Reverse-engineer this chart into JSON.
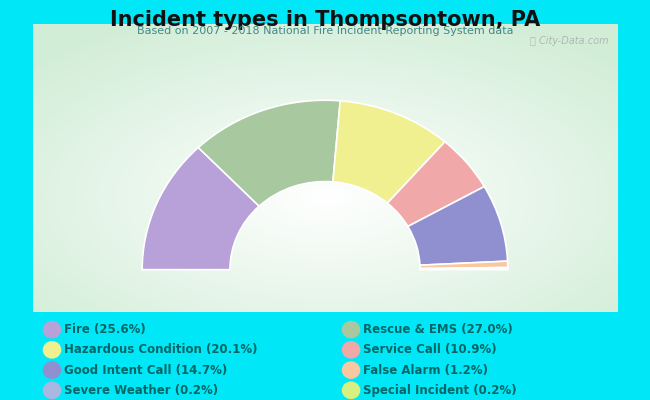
{
  "title": "Incident types in Thompsontown, PA",
  "subtitle": "Based on 2007 - 2018 National Fire Incident Reporting System data",
  "background_color": "#00e8f8",
  "watermark": "ⓘ City-Data.com",
  "title_color": "#111111",
  "subtitle_color": "#448888",
  "legend_text_color": "#006666",
  "segments_ordered": [
    {
      "label": "Fire (25.6%)",
      "value": 25.6,
      "color": "#b8a0d8"
    },
    {
      "label": "Rescue & EMS (27.0%)",
      "value": 27.0,
      "color": "#a8c8a0"
    },
    {
      "label": "Hazardous Condition (20.1%)",
      "value": 20.1,
      "color": "#f0f090"
    },
    {
      "label": "Service Call (10.9%)",
      "value": 10.9,
      "color": "#f0a8a8"
    },
    {
      "label": "Good Intent Call (14.7%)",
      "value": 14.7,
      "color": "#9090d0"
    },
    {
      "label": "False Alarm (1.2%)",
      "value": 1.2,
      "color": "#f8c8a0"
    },
    {
      "label": "Severe Weather (0.2%)",
      "value": 0.2,
      "color": "#a8b8e0"
    },
    {
      "label": "Special Incident (0.2%)",
      "value": 0.2,
      "color": "#d8f080"
    }
  ],
  "legend_items": [
    {
      "label": "Fire (25.6%)",
      "color": "#b8a0d8"
    },
    {
      "label": "Rescue & EMS (27.0%)",
      "color": "#a8c8a0"
    },
    {
      "label": "Hazardous Condition (20.1%)",
      "color": "#f0f090"
    },
    {
      "label": "Service Call (10.9%)",
      "color": "#f0a8a8"
    },
    {
      "label": "Good Intent Call (14.7%)",
      "color": "#9090d0"
    },
    {
      "label": "False Alarm (1.2%)",
      "color": "#f8c8a0"
    },
    {
      "label": "Severe Weather (0.2%)",
      "color": "#a8b8e0"
    },
    {
      "label": "Special Incident (0.2%)",
      "color": "#d8f080"
    }
  ],
  "outer_r": 1.0,
  "inner_r": 0.52,
  "chart_area": [
    0.05,
    0.22,
    0.9,
    0.72
  ]
}
